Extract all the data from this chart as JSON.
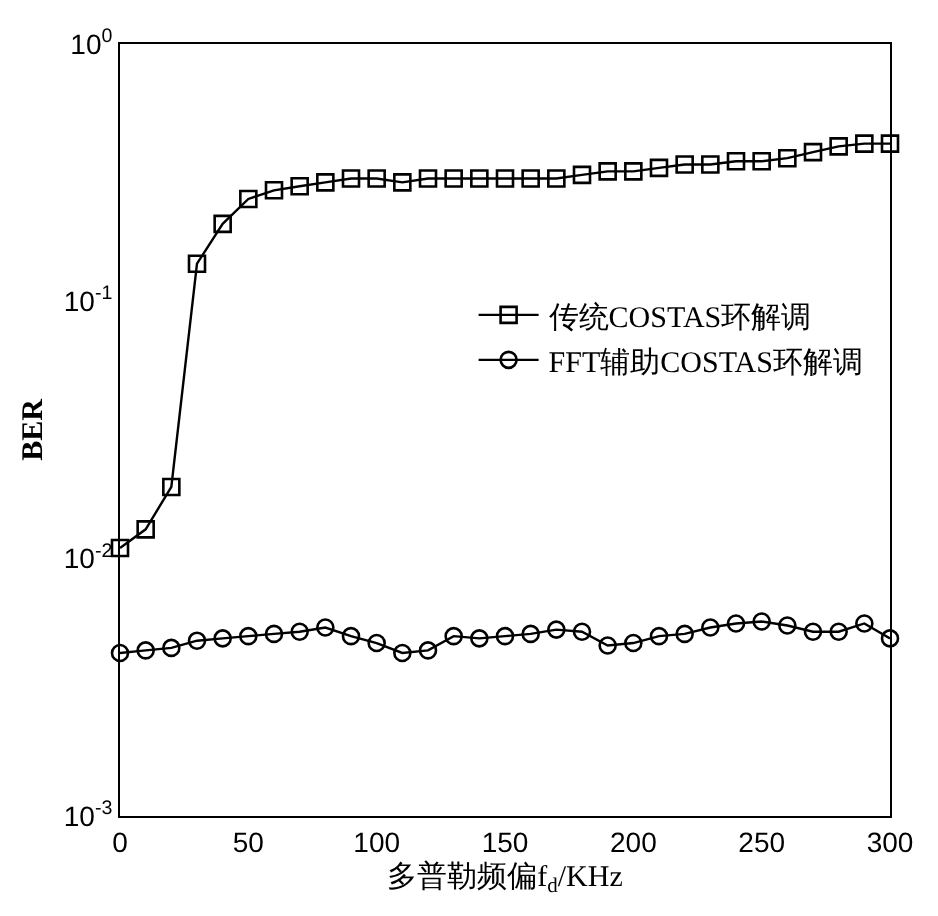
{
  "chart_data": {
    "type": "line",
    "xlabel": "多普勒频偏f$_{d}$/KHz",
    "ylabel": "BER",
    "log": "y",
    "grid": false,
    "legend": "right",
    "x": [
      0,
      10,
      20,
      30,
      40,
      50,
      60,
      70,
      80,
      90,
      100,
      110,
      120,
      130,
      140,
      150,
      160,
      170,
      180,
      190,
      200,
      210,
      220,
      230,
      240,
      250,
      260,
      270,
      280,
      290,
      300
    ],
    "xlim": [
      0,
      300
    ],
    "xticks": [
      0,
      50,
      100,
      150,
      200,
      250,
      300
    ],
    "ylim": [
      0.001,
      1
    ],
    "yticks": [
      {
        "value": 0.001,
        "label": "10$^{-3}$"
      },
      {
        "value": 0.01,
        "label": "10$^{-2}$"
      },
      {
        "value": 0.1,
        "label": "10$^{-1}$"
      },
      {
        "value": 1,
        "label": "10$^{0}$"
      }
    ],
    "series": [
      {
        "name": "传统COSTAS环解调",
        "color": "#000000",
        "marker": "square",
        "values": [
          0.011,
          0.013,
          0.019,
          0.14,
          0.2,
          0.25,
          0.27,
          0.28,
          0.29,
          0.3,
          0.3,
          0.29,
          0.3,
          0.3,
          0.3,
          0.3,
          0.3,
          0.3,
          0.31,
          0.32,
          0.32,
          0.33,
          0.34,
          0.34,
          0.35,
          0.35,
          0.36,
          0.38,
          0.4,
          0.41,
          0.41
        ]
      },
      {
        "name": "FFT辅助COSTAS环解调",
        "color": "#000000",
        "marker": "circle",
        "values": [
          0.0043,
          0.0044,
          0.0045,
          0.0048,
          0.0049,
          0.005,
          0.0051,
          0.0052,
          0.0054,
          0.005,
          0.0047,
          0.0043,
          0.0044,
          0.005,
          0.0049,
          0.005,
          0.0051,
          0.0053,
          0.0052,
          0.0046,
          0.0047,
          0.005,
          0.0051,
          0.0054,
          0.0056,
          0.0057,
          0.0055,
          0.0052,
          0.0052,
          0.0056,
          0.0049
        ]
      }
    ]
  }
}
